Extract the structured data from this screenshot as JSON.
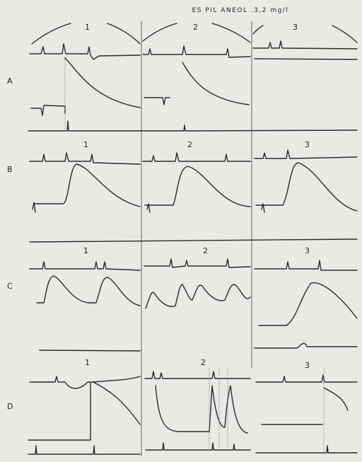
{
  "header": {
    "title": "ES PIL ANEOL .3,2 mg/l"
  },
  "rows": [
    {
      "label": "A",
      "panels": [
        "1",
        "2",
        "3"
      ]
    },
    {
      "label": "B",
      "panels": [
        "1",
        "2",
        "3"
      ]
    },
    {
      "label": "C",
      "panels": [
        "1",
        "2",
        "3"
      ]
    },
    {
      "label": "D",
      "panels": [
        "1",
        "2",
        "3"
      ]
    }
  ]
}
